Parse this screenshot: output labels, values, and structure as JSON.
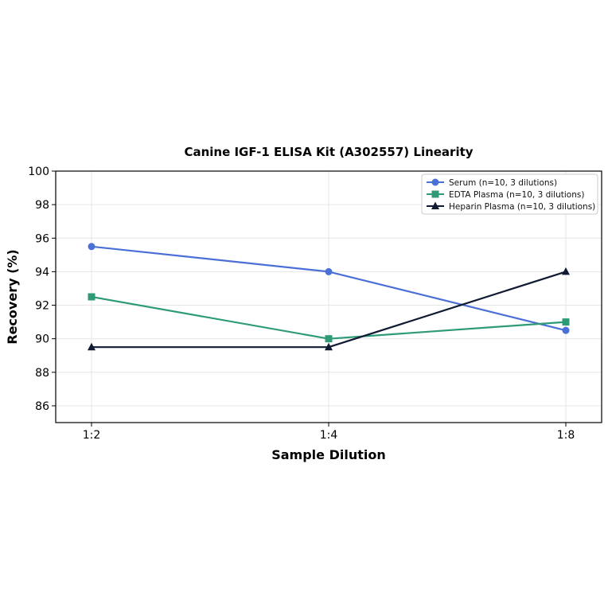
{
  "chart_data": {
    "type": "line",
    "title": "Canine IGF-1 ELISA Kit (A302557) Linearity",
    "xlabel": "Sample Dilution",
    "ylabel": "Recovery (%)",
    "categories": [
      "1:2",
      "1:4",
      "1:8"
    ],
    "ylim": [
      85,
      100
    ],
    "yticks": [
      86,
      88,
      90,
      92,
      94,
      96,
      98,
      100
    ],
    "grid": true,
    "legend_position": "top-right",
    "series": [
      {
        "name": "Serum (n=10, 3 dilutions)",
        "values": [
          95.5,
          94.0,
          90.5
        ],
        "color": "#4a6fd6",
        "marker": "circle"
      },
      {
        "name": "EDTA Plasma (n=10, 3 dilutions)",
        "values": [
          92.5,
          90.0,
          91.0
        ],
        "color": "#2e9b76",
        "marker": "square"
      },
      {
        "name": "Heparin Plasma (n=10, 3 dilutions)",
        "values": [
          89.5,
          89.5,
          94.0
        ],
        "color": "#111a33",
        "marker": "triangle"
      }
    ]
  }
}
